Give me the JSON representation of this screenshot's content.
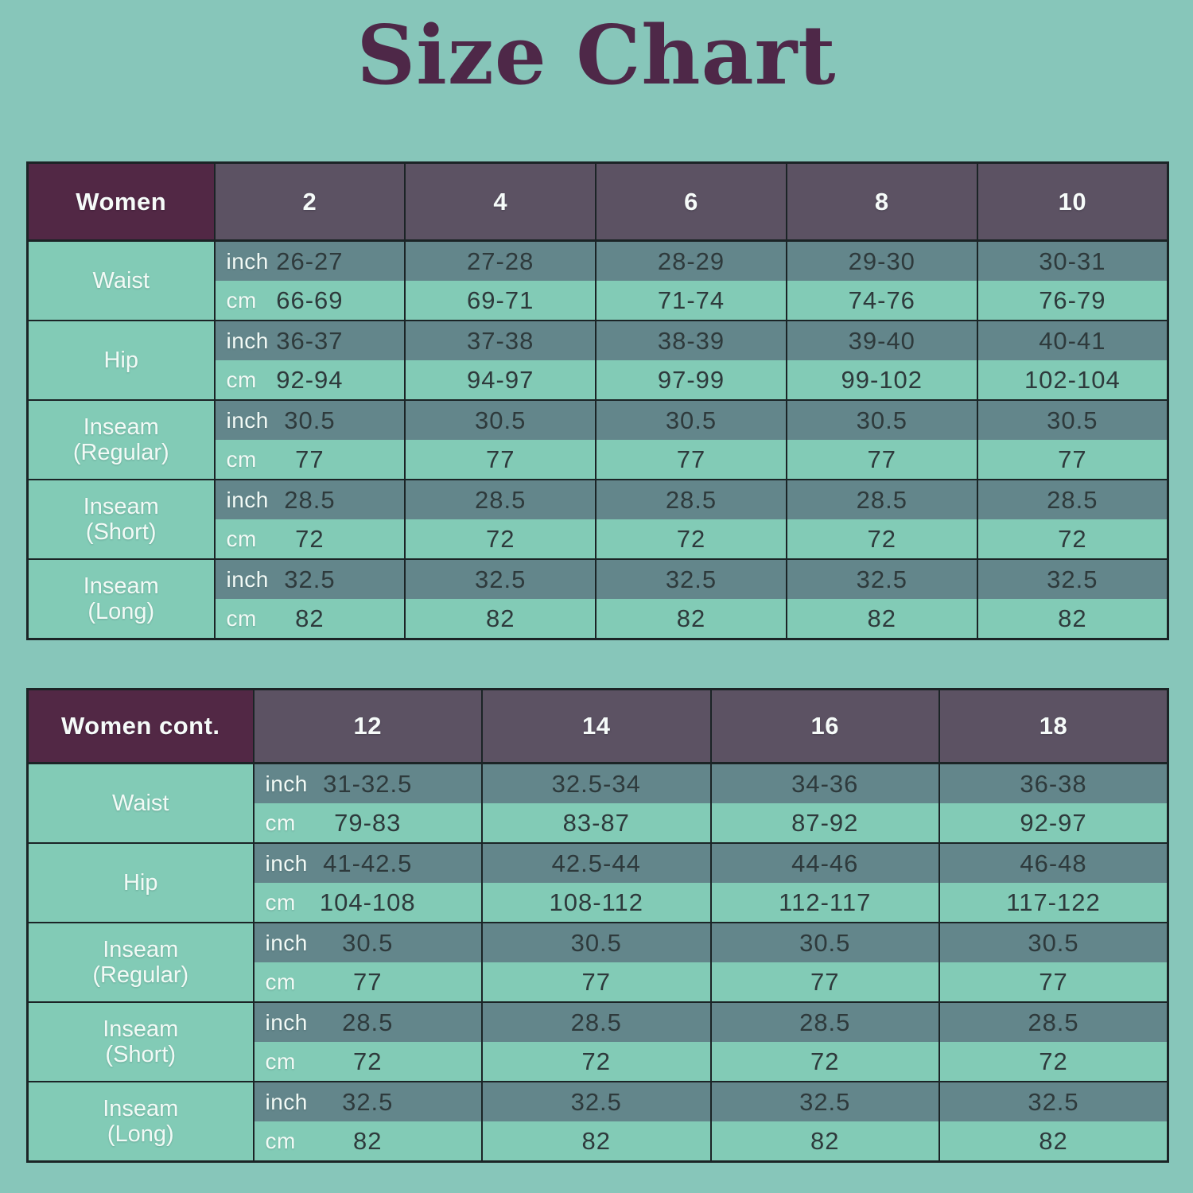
{
  "title": "Size Chart",
  "colors": {
    "page_background": "#87c6ba",
    "title_text": "#4e2848",
    "corner_header_bg": "#522845",
    "size_header_bg": "#5c5263",
    "header_text": "#f6fbf9",
    "label_cell_bg": "#82cbb6",
    "label_cell_text": "#f2faf6",
    "inch_row_bg": "#63868b",
    "cm_row_bg": "#82cbb6",
    "unit_text": "#f2faf6",
    "value_text": "#2e3a3c",
    "table_border": "#1b2426"
  },
  "chart_data": [
    {
      "type": "table",
      "corner_label": "Women",
      "sizes": [
        "2",
        "4",
        "6",
        "8",
        "10"
      ],
      "measurements": [
        {
          "label": "Waist",
          "label2": "",
          "units": [
            {
              "unit": "inch",
              "values": [
                "26-27",
                "27-28",
                "28-29",
                "29-30",
                "30-31"
              ]
            },
            {
              "unit": "cm",
              "values": [
                "66-69",
                "69-71",
                "71-74",
                "74-76",
                "76-79"
              ]
            }
          ]
        },
        {
          "label": "Hip",
          "label2": "",
          "units": [
            {
              "unit": "inch",
              "values": [
                "36-37",
                "37-38",
                "38-39",
                "39-40",
                "40-41"
              ]
            },
            {
              "unit": "cm",
              "values": [
                "92-94",
                "94-97",
                "97-99",
                "99-102",
                "102-104"
              ]
            }
          ]
        },
        {
          "label": "Inseam",
          "label2": "(Regular)",
          "units": [
            {
              "unit": "inch",
              "values": [
                "30.5",
                "30.5",
                "30.5",
                "30.5",
                "30.5"
              ]
            },
            {
              "unit": "cm",
              "values": [
                "77",
                "77",
                "77",
                "77",
                "77"
              ]
            }
          ]
        },
        {
          "label": "Inseam",
          "label2": "(Short)",
          "units": [
            {
              "unit": "inch",
              "values": [
                "28.5",
                "28.5",
                "28.5",
                "28.5",
                "28.5"
              ]
            },
            {
              "unit": "cm",
              "values": [
                "72",
                "72",
                "72",
                "72",
                "72"
              ]
            }
          ]
        },
        {
          "label": "Inseam",
          "label2": "(Long)",
          "units": [
            {
              "unit": "inch",
              "values": [
                "32.5",
                "32.5",
                "32.5",
                "32.5",
                "32.5"
              ]
            },
            {
              "unit": "cm",
              "values": [
                "82",
                "82",
                "82",
                "82",
                "82"
              ]
            }
          ]
        }
      ]
    },
    {
      "type": "table",
      "corner_label": "Women cont.",
      "sizes": [
        "12",
        "14",
        "16",
        "18"
      ],
      "measurements": [
        {
          "label": "Waist",
          "label2": "",
          "units": [
            {
              "unit": "inch",
              "values": [
                "31-32.5",
                "32.5-34",
                "34-36",
                "36-38"
              ]
            },
            {
              "unit": "cm",
              "values": [
                "79-83",
                "83-87",
                "87-92",
                "92-97"
              ]
            }
          ]
        },
        {
          "label": "Hip",
          "label2": "",
          "units": [
            {
              "unit": "inch",
              "values": [
                "41-42.5",
                "42.5-44",
                "44-46",
                "46-48"
              ]
            },
            {
              "unit": "cm",
              "values": [
                "104-108",
                "108-112",
                "112-117",
                "117-122"
              ]
            }
          ]
        },
        {
          "label": "Inseam",
          "label2": "(Regular)",
          "units": [
            {
              "unit": "inch",
              "values": [
                "30.5",
                "30.5",
                "30.5",
                "30.5"
              ]
            },
            {
              "unit": "cm",
              "values": [
                "77",
                "77",
                "77",
                "77"
              ]
            }
          ]
        },
        {
          "label": "Inseam",
          "label2": "(Short)",
          "units": [
            {
              "unit": "inch",
              "values": [
                "28.5",
                "28.5",
                "28.5",
                "28.5"
              ]
            },
            {
              "unit": "cm",
              "values": [
                "72",
                "72",
                "72",
                "72"
              ]
            }
          ]
        },
        {
          "label": "Inseam",
          "label2": "(Long)",
          "units": [
            {
              "unit": "inch",
              "values": [
                "32.5",
                "32.5",
                "32.5",
                "32.5"
              ]
            },
            {
              "unit": "cm",
              "values": [
                "82",
                "82",
                "82",
                "82"
              ]
            }
          ]
        }
      ]
    }
  ]
}
